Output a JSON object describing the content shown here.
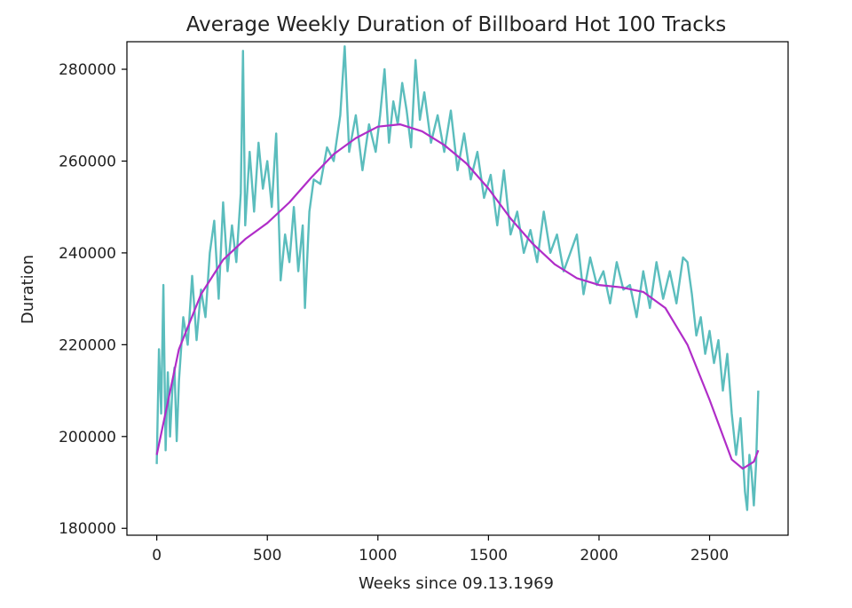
{
  "chart_data": {
    "type": "line",
    "title": "Average Weekly Duration of Billboard Hot 100 Tracks",
    "xlabel": "Weeks since 09.13.1969",
    "ylabel": "Duration",
    "xlim": [
      -135,
      2855
    ],
    "ylim": [
      178500,
      286000
    ],
    "x_ticks": [
      0,
      500,
      1000,
      1500,
      2000,
      2500
    ],
    "y_ticks": [
      180000,
      200000,
      220000,
      240000,
      260000,
      280000
    ],
    "grid": false,
    "legend": "none",
    "series": [
      {
        "style": "raw",
        "color": "#5bbdbd",
        "x": [
          0,
          10,
          20,
          30,
          40,
          50,
          60,
          70,
          80,
          90,
          100,
          120,
          140,
          160,
          180,
          200,
          220,
          240,
          260,
          280,
          300,
          320,
          340,
          360,
          380,
          390,
          400,
          420,
          440,
          460,
          480,
          500,
          520,
          540,
          560,
          580,
          600,
          620,
          640,
          660,
          670,
          690,
          710,
          740,
          770,
          800,
          830,
          850,
          870,
          900,
          930,
          960,
          990,
          1010,
          1030,
          1050,
          1070,
          1090,
          1110,
          1130,
          1150,
          1170,
          1190,
          1210,
          1240,
          1270,
          1300,
          1330,
          1360,
          1390,
          1420,
          1450,
          1480,
          1510,
          1540,
          1570,
          1600,
          1630,
          1660,
          1690,
          1720,
          1750,
          1780,
          1810,
          1840,
          1870,
          1900,
          1930,
          1960,
          1990,
          2020,
          2050,
          2080,
          2110,
          2140,
          2170,
          2200,
          2230,
          2260,
          2290,
          2320,
          2350,
          2380,
          2400,
          2420,
          2440,
          2460,
          2480,
          2500,
          2520,
          2540,
          2560,
          2580,
          2600,
          2620,
          2640,
          2660,
          2670,
          2680,
          2690,
          2700,
          2710,
          2720
        ],
        "y": [
          194000,
          219000,
          205000,
          233000,
          197000,
          214000,
          200000,
          210000,
          215000,
          199000,
          212000,
          226000,
          220000,
          235000,
          221000,
          232000,
          226000,
          240000,
          247000,
          230000,
          251000,
          236000,
          246000,
          238000,
          253000,
          284000,
          246000,
          262000,
          249000,
          264000,
          254000,
          260000,
          250000,
          266000,
          234000,
          244000,
          238000,
          250000,
          236000,
          246000,
          228000,
          249000,
          256000,
          255000,
          263000,
          260000,
          270000,
          285000,
          262000,
          270000,
          258000,
          268000,
          262000,
          270000,
          280000,
          264000,
          273000,
          268000,
          277000,
          271000,
          263000,
          282000,
          269000,
          275000,
          264000,
          270000,
          262000,
          271000,
          258000,
          266000,
          256000,
          262000,
          252000,
          257000,
          246000,
          258000,
          244000,
          249000,
          240000,
          245000,
          238000,
          249000,
          240000,
          244000,
          236000,
          240000,
          244000,
          231000,
          239000,
          233000,
          236000,
          229000,
          238000,
          232000,
          233000,
          226000,
          236000,
          228000,
          238000,
          230000,
          236000,
          229000,
          239000,
          238000,
          231000,
          222000,
          226000,
          218000,
          223000,
          216000,
          221000,
          210000,
          218000,
          205000,
          196000,
          204000,
          188000,
          184000,
          196000,
          192000,
          185000,
          194000,
          210000
        ]
      },
      {
        "style": "smooth",
        "color": "#b02dc8",
        "x": [
          0,
          100,
          200,
          300,
          400,
          500,
          600,
          700,
          800,
          900,
          1000,
          1100,
          1200,
          1300,
          1400,
          1500,
          1600,
          1700,
          1800,
          1900,
          2000,
          2100,
          2200,
          2300,
          2400,
          2500,
          2600,
          2650,
          2700,
          2720
        ],
        "y": [
          196000,
          219000,
          231000,
          238500,
          243000,
          246500,
          251000,
          256500,
          261500,
          265000,
          267500,
          268000,
          266500,
          263500,
          259500,
          254000,
          247500,
          242000,
          237500,
          234500,
          233000,
          232500,
          231500,
          228000,
          220000,
          208000,
          195000,
          193000,
          194500,
          197000
        ]
      }
    ]
  }
}
